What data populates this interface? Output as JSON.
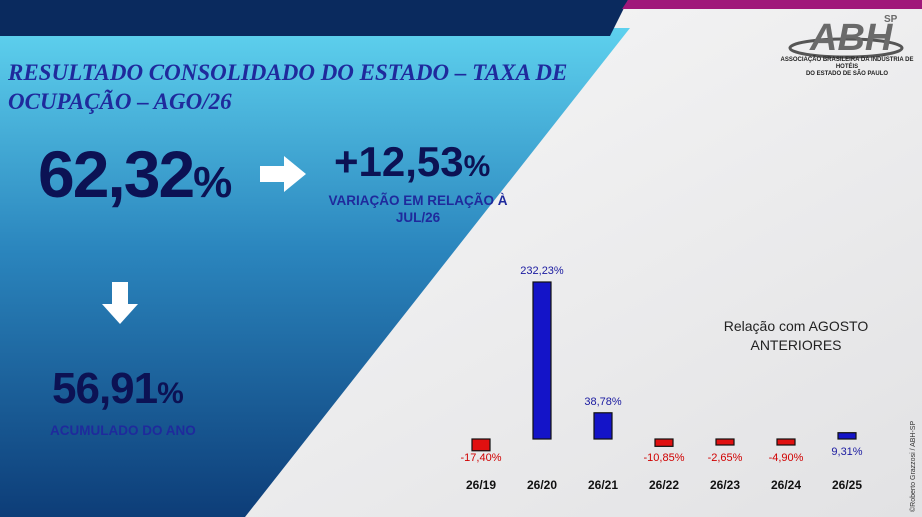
{
  "title": "RESULTADO CONSOLIDADO DO ESTADO – TAXA DE OCUPAÇÃO – AGO/26",
  "main_value": "62,32",
  "main_unit": "%",
  "variation_value": "+12,53",
  "variation_unit": "%",
  "variation_label": "VARIAÇÃO EM RELAÇÃO À JUL/26",
  "accumulated_value": "56,91",
  "accumulated_unit": "%",
  "accumulated_label": "ACUMULADO DO ANO",
  "logo": {
    "text": "ABH",
    "superscript": "SP",
    "subtitle_line1": "ASSOCIAÇÃO BRASILEIRA DA INDÚSTRIA DE HOTÉIS",
    "subtitle_line2": "DO ESTADO DE SÃO PAULO"
  },
  "credit": "©Roberto Grazzosi / ABH-SP",
  "colors": {
    "title": "#1f2a9c",
    "value": "#0c1254",
    "positive_bar": "#1414c8",
    "negative_bar": "#e01010",
    "positive_label": "#1a1aa0",
    "negative_label": "#d00000",
    "top_stripe_dark": "#0a2a5e",
    "top_stripe_accent": "#a0187a"
  },
  "chart_data": {
    "type": "bar",
    "note": "Relação com AGOSTO ANTERIORES",
    "categories": [
      "26/19",
      "26/20",
      "26/21",
      "26/22",
      "26/23",
      "26/24",
      "26/25"
    ],
    "values": [
      -17.4,
      232.23,
      38.78,
      -10.85,
      -2.65,
      -4.9,
      9.31
    ],
    "labels": [
      "-17,40%",
      "232,23%",
      "38,78%",
      "-10,85%",
      "-2,65%",
      "-4,90%",
      "9,31%"
    ],
    "grid": false,
    "legend": "none"
  }
}
